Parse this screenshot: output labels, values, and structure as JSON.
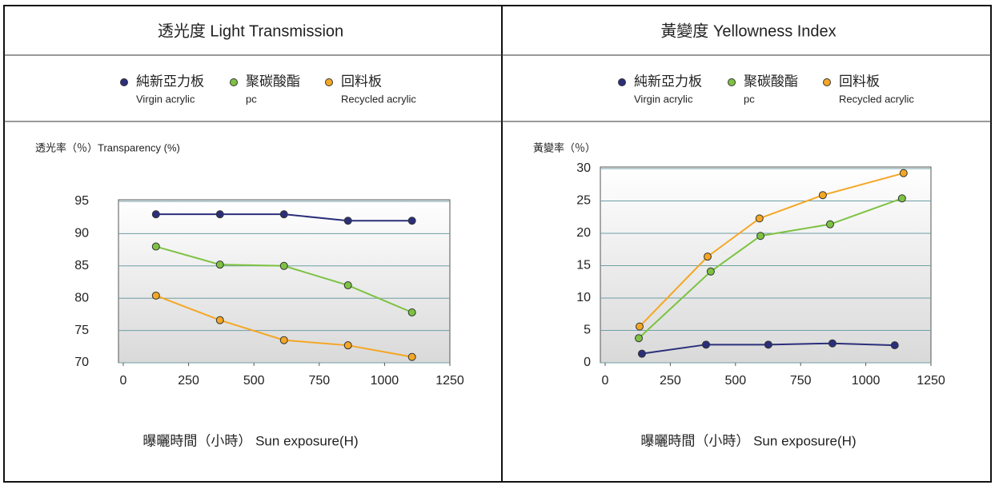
{
  "chart_data": [
    {
      "type": "line",
      "title": "透光度 Light Transmission",
      "y_label": "透光率（％）Transparency (%)",
      "x_label": "曝曬時間（小時） Sun exposure(H)",
      "xlim": [
        0,
        1250
      ],
      "xticks": [
        0,
        250,
        500,
        750,
        1000,
        1250
      ],
      "ylim": [
        70,
        95
      ],
      "yticks": [
        70,
        75,
        80,
        85,
        90,
        95
      ],
      "grid": true,
      "series": [
        {
          "name": "純新亞力板",
          "name_en": "Virgin acrylic",
          "color": "#2b2f7a",
          "x": [
            125,
            370,
            615,
            860,
            1105
          ],
          "values": [
            93,
            93,
            93,
            92,
            92
          ]
        },
        {
          "name": "聚碳酸酯",
          "name_en": "pc",
          "color": "#7dc242",
          "x": [
            125,
            370,
            615,
            860,
            1105
          ],
          "values": [
            88,
            85.2,
            85,
            82,
            77.8
          ]
        },
        {
          "name": "回料板",
          "name_en": "Recycled acrylic",
          "color": "#f5a623",
          "x": [
            125,
            370,
            615,
            860,
            1105
          ],
          "values": [
            80.4,
            76.6,
            73.5,
            72.7,
            70.9
          ]
        }
      ]
    },
    {
      "type": "line",
      "title": "黃變度 Yellowness  Index",
      "y_label": "黃變率（％）",
      "x_label": "曝曬時間（小時） Sun exposure(H)",
      "xlim": [
        0,
        1250
      ],
      "xticks": [
        0,
        250,
        500,
        750,
        1000,
        1250
      ],
      "ylim": [
        0,
        30
      ],
      "yticks": [
        0,
        5,
        10,
        15,
        20,
        25,
        30
      ],
      "grid": true,
      "series": [
        {
          "name": "純新亞力板",
          "name_en": "Virgin acrylic",
          "color": "#2b2f7a",
          "x": [
            141,
            387,
            626,
            872,
            1111
          ],
          "values": [
            1.4,
            2.8,
            2.8,
            3,
            2.7
          ]
        },
        {
          "name": "聚碳酸酯",
          "name_en": "pc",
          "color": "#7dc242",
          "x": [
            129,
            405,
            596,
            863,
            1139
          ],
          "values": [
            3.8,
            14.1,
            19.6,
            21.4,
            25.4
          ]
        },
        {
          "name": "回料板",
          "name_en": "Recycled acrylic",
          "color": "#f5a623",
          "x": [
            132,
            393,
            592,
            835,
            1145
          ],
          "values": [
            5.6,
            16.4,
            22.3,
            25.9,
            29.3
          ]
        }
      ]
    }
  ]
}
